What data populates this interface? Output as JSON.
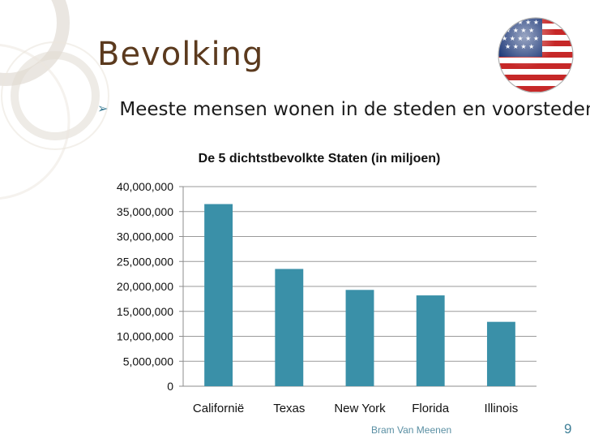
{
  "slide": {
    "title": "Bevolking",
    "bullet": "Meeste mensen wonen in de steden en voorsteden",
    "footer_author": "Bram Van Meenen",
    "page_number": "9"
  },
  "colors": {
    "title": "#5b3a1e",
    "bar": "#3a90a8",
    "accent": "#3f7f97"
  },
  "icons": {
    "bullet": "arrow-bullet-icon",
    "flag": "us-flag-globe-icon"
  },
  "chart_data": {
    "type": "bar",
    "title": "De 5 dichtstbevolkte Staten (in miljoen)",
    "categories": [
      "Californië",
      "Texas",
      "New York",
      "Florida",
      "Illinois"
    ],
    "values": [
      36500000,
      23500000,
      19300000,
      18200000,
      12900000
    ],
    "ylim": [
      0,
      40000000
    ],
    "yticks": [
      "0",
      "5,000,000",
      "10,000,000",
      "15,000,000",
      "20,000,000",
      "25,000,000",
      "30,000,000",
      "35,000,000",
      "40,000,000"
    ],
    "grid": true,
    "legend": "none",
    "xlabel": "",
    "ylabel": ""
  }
}
